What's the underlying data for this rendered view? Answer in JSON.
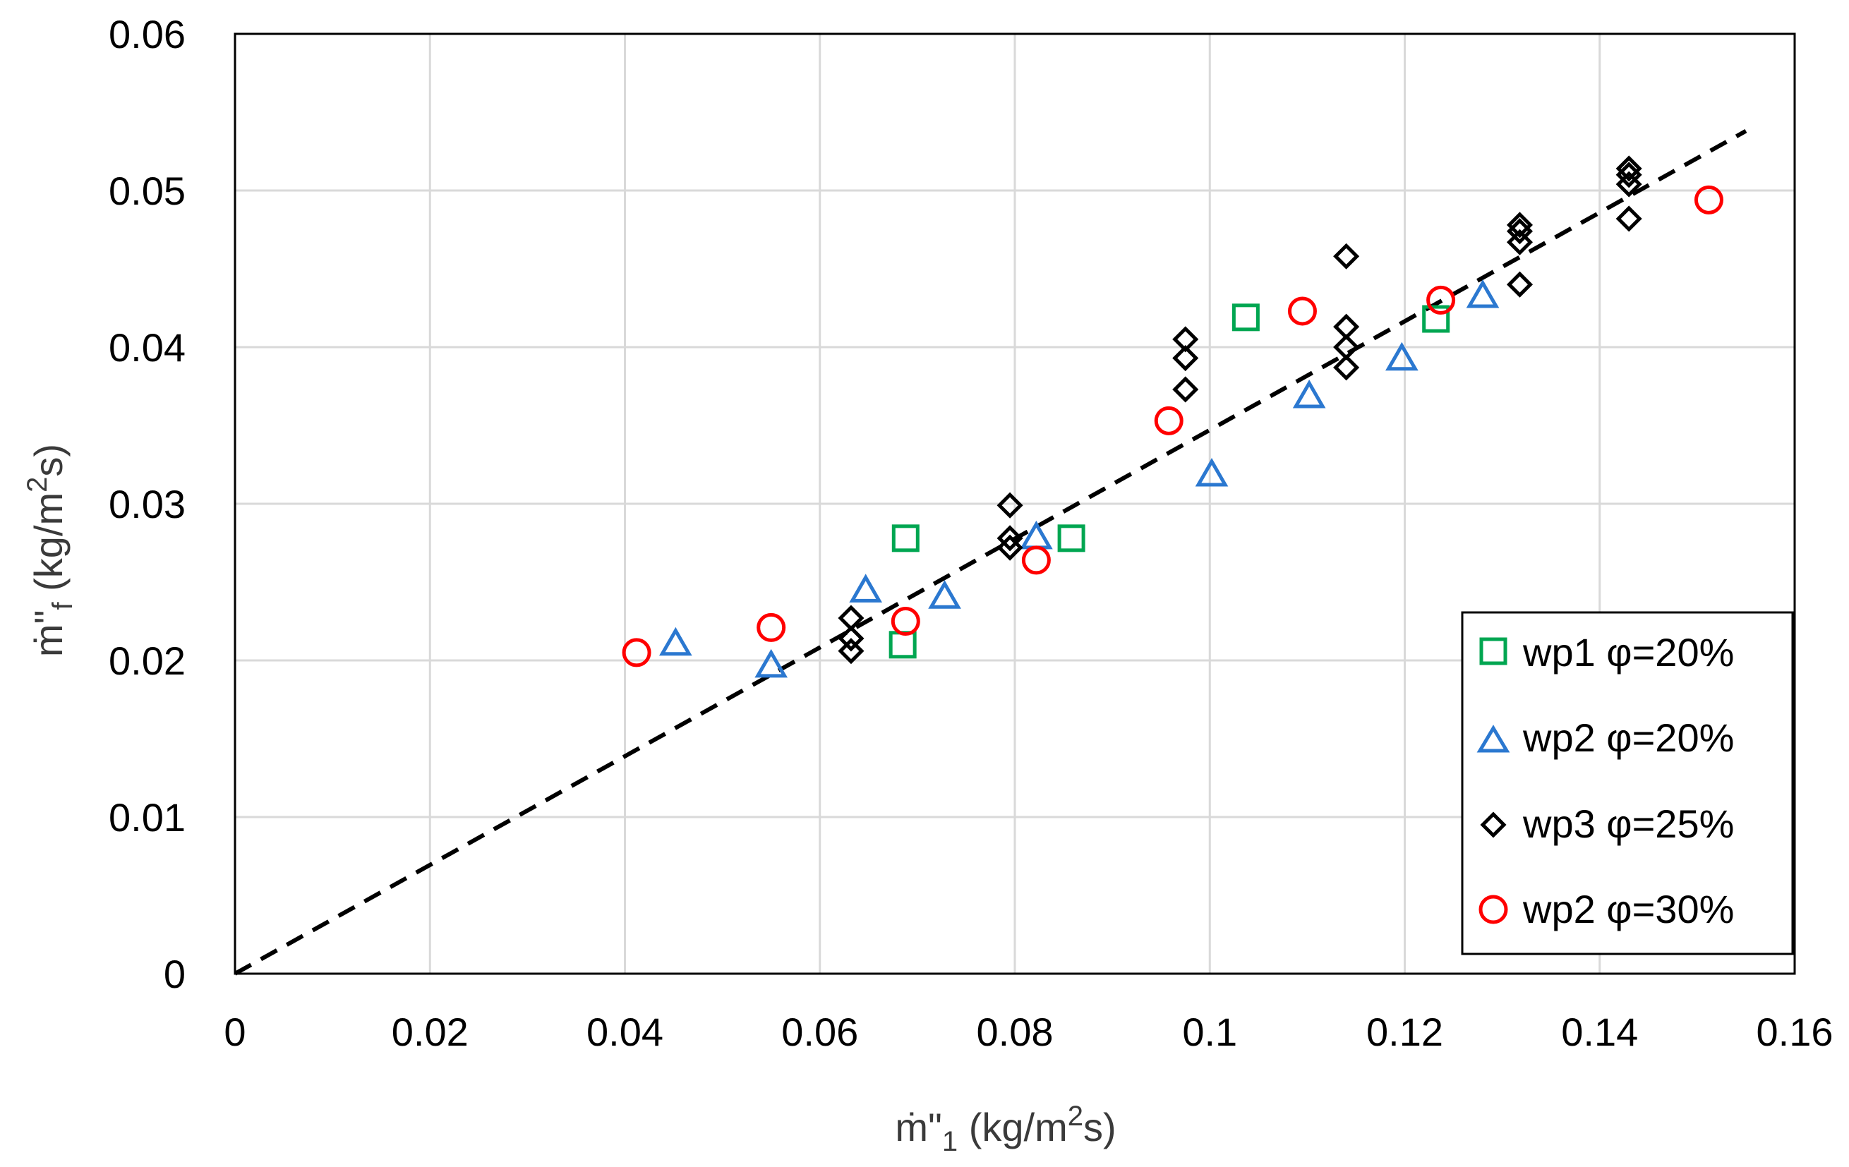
{
  "chart_data": {
    "type": "scatter",
    "xlabel": {
      "base": "ṁ\"",
      "sub": "1",
      "unit_pre": " (kg/m",
      "sup": "2",
      "unit_post": "s)"
    },
    "ylabel": {
      "base": "ṁ\"",
      "sub": "f",
      "unit_pre": " (kg/m",
      "sup": "2",
      "unit_post": "s)"
    },
    "xlim": [
      0,
      0.16
    ],
    "ylim": [
      0,
      0.06
    ],
    "x_ticks": [
      {
        "value": 0,
        "label": "0"
      },
      {
        "value": 0.02,
        "label": "0.02"
      },
      {
        "value": 0.04,
        "label": "0.04"
      },
      {
        "value": 0.06,
        "label": "0.06"
      },
      {
        "value": 0.08,
        "label": "0.08"
      },
      {
        "value": 0.1,
        "label": "0.1"
      },
      {
        "value": 0.12,
        "label": "0.12"
      },
      {
        "value": 0.14,
        "label": "0.14"
      },
      {
        "value": 0.16,
        "label": "0.16"
      }
    ],
    "y_ticks": [
      {
        "value": 0,
        "label": "0"
      },
      {
        "value": 0.01,
        "label": "0.01"
      },
      {
        "value": 0.02,
        "label": "0.02"
      },
      {
        "value": 0.03,
        "label": "0.03"
      },
      {
        "value": 0.04,
        "label": "0.04"
      },
      {
        "value": 0.05,
        "label": "0.05"
      },
      {
        "value": 0.06,
        "label": "0.06"
      }
    ],
    "grid": true,
    "legend_position": "bottom-right",
    "trend_line": {
      "style": "dashed",
      "color": "#000000",
      "from": [
        0,
        0
      ],
      "to": [
        0.155,
        0.0538
      ]
    },
    "series": [
      {
        "name": "wp1 φ=20%",
        "marker": "square",
        "color": "#00a651",
        "points": [
          [
            0.0688,
            0.0278
          ],
          [
            0.0685,
            0.021
          ],
          [
            0.0858,
            0.0278
          ],
          [
            0.1037,
            0.0419
          ],
          [
            0.1232,
            0.0418
          ]
        ]
      },
      {
        "name": "wp2 φ=20%",
        "marker": "triangle",
        "color": "#2b78d0",
        "points": [
          [
            0.0452,
            0.021
          ],
          [
            0.055,
            0.0196
          ],
          [
            0.0647,
            0.0244
          ],
          [
            0.0728,
            0.024
          ],
          [
            0.0822,
            0.0278
          ],
          [
            0.1002,
            0.0318
          ],
          [
            0.1102,
            0.0368
          ],
          [
            0.1197,
            0.0392
          ],
          [
            0.128,
            0.0432
          ]
        ]
      },
      {
        "name": "wp3 φ=25%",
        "marker": "diamond",
        "color": "#000000",
        "points": [
          [
            0.0632,
            0.0227
          ],
          [
            0.0632,
            0.0214
          ],
          [
            0.0632,
            0.0206
          ],
          [
            0.0795,
            0.0299
          ],
          [
            0.0795,
            0.0278
          ],
          [
            0.0795,
            0.0272
          ],
          [
            0.0975,
            0.0405
          ],
          [
            0.0975,
            0.0393
          ],
          [
            0.0975,
            0.0373
          ],
          [
            0.114,
            0.0458
          ],
          [
            0.114,
            0.0413
          ],
          [
            0.114,
            0.04
          ],
          [
            0.114,
            0.0387
          ],
          [
            0.1318,
            0.0478
          ],
          [
            0.1318,
            0.0474
          ],
          [
            0.1318,
            0.0467
          ],
          [
            0.1318,
            0.044
          ],
          [
            0.143,
            0.0514
          ],
          [
            0.143,
            0.051
          ],
          [
            0.143,
            0.0504
          ],
          [
            0.143,
            0.0482
          ]
        ]
      },
      {
        "name": "wp2 φ=30%",
        "marker": "circle",
        "color": "#ff0000",
        "points": [
          [
            0.0412,
            0.0205
          ],
          [
            0.055,
            0.0221
          ],
          [
            0.0688,
            0.0225
          ],
          [
            0.0822,
            0.0264
          ],
          [
            0.0958,
            0.0353
          ],
          [
            0.1095,
            0.0423
          ],
          [
            0.1237,
            0.043
          ],
          [
            0.1512,
            0.0494
          ]
        ]
      }
    ]
  }
}
